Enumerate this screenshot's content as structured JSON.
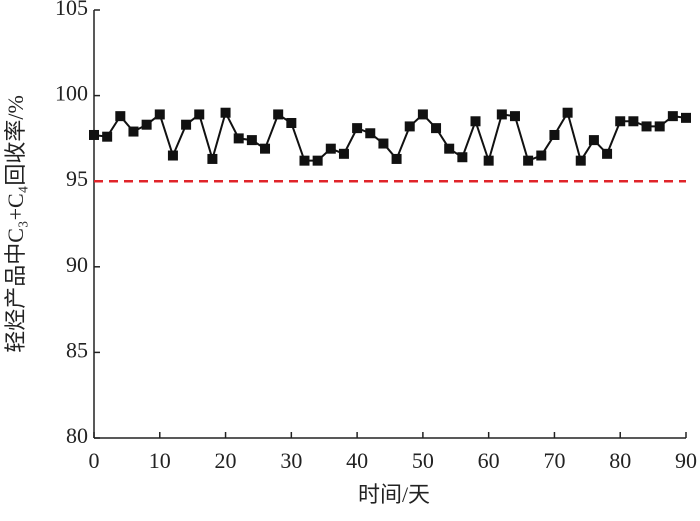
{
  "chart_data": {
    "type": "line",
    "x_label": "时间/天",
    "y_label": "轻烃产品中C₃+C₄回收率/%",
    "x": [
      0,
      2,
      4,
      6,
      8,
      10,
      12,
      14,
      16,
      18,
      20,
      22,
      24,
      26,
      28,
      30,
      32,
      34,
      36,
      38,
      40,
      42,
      44,
      46,
      48,
      50,
      52,
      54,
      56,
      58,
      60,
      62,
      64,
      66,
      68,
      70,
      72,
      74,
      76,
      78,
      80,
      82,
      84,
      86,
      88,
      90
    ],
    "series": [
      {
        "color": "#111111",
        "marker": "square",
        "values": [
          97.7,
          97.6,
          98.8,
          97.9,
          98.3,
          98.9,
          96.5,
          98.3,
          98.9,
          96.3,
          99.0,
          97.5,
          97.4,
          96.9,
          98.9,
          98.4,
          96.2,
          96.2,
          96.9,
          96.6,
          98.1,
          97.8,
          97.2,
          96.3,
          98.2,
          98.9,
          98.1,
          96.9,
          96.4,
          98.5,
          96.2,
          98.9,
          98.8,
          96.2,
          96.5,
          97.7,
          99.0,
          96.2,
          97.4,
          96.6,
          98.5,
          98.5,
          98.2,
          98.2,
          98.8,
          98.7
        ]
      }
    ],
    "reference_line": {
      "value": 95,
      "color": "#e0242a"
    },
    "xlim": [
      0,
      90
    ],
    "xticks": [
      0,
      10,
      20,
      30,
      40,
      50,
      60,
      70,
      80,
      90
    ],
    "ylim": [
      80,
      105
    ],
    "yticks": [
      80,
      85,
      90,
      95,
      100,
      105
    ]
  }
}
